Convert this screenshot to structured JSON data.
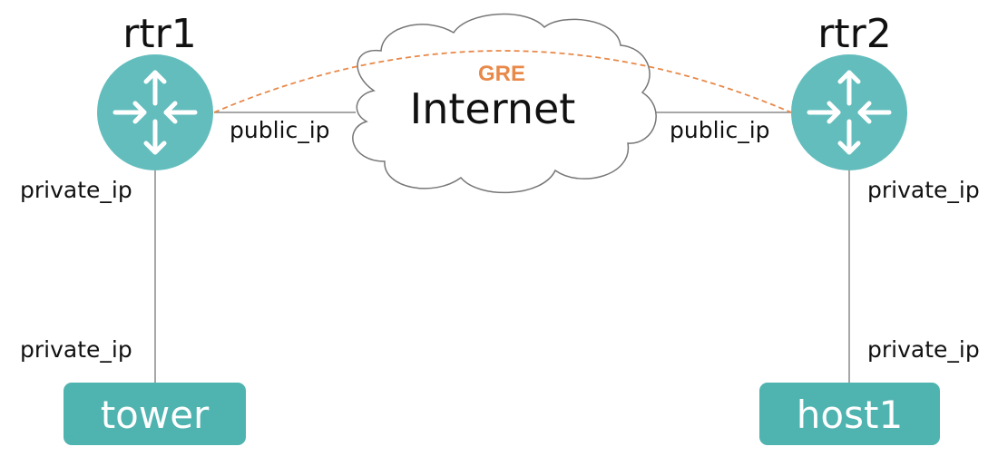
{
  "colors": {
    "router_fill": "#64bdbd",
    "host_fill": "#4fb3b0",
    "link_stroke": "#8a8a8a",
    "tunnel_stroke": "#e8894a",
    "cloud_stroke": "#777777"
  },
  "nodes": {
    "rtr1": {
      "label": "rtr1",
      "icon": "router-icon"
    },
    "rtr2": {
      "label": "rtr2",
      "icon": "router-icon"
    },
    "internet": {
      "label": "Internet",
      "icon": "cloud-icon"
    },
    "tower": {
      "label": "tower"
    },
    "host1": {
      "label": "host1"
    }
  },
  "links": {
    "tunnel": {
      "label": "GRE",
      "style": "dashed"
    },
    "rtr1_public": {
      "label": "public_ip"
    },
    "rtr2_public": {
      "label": "public_ip"
    },
    "rtr1_private": {
      "label": "private_ip"
    },
    "tower_private": {
      "label": "private_ip"
    },
    "rtr2_private": {
      "label": "private_ip"
    },
    "host1_private": {
      "label": "private_ip"
    }
  }
}
